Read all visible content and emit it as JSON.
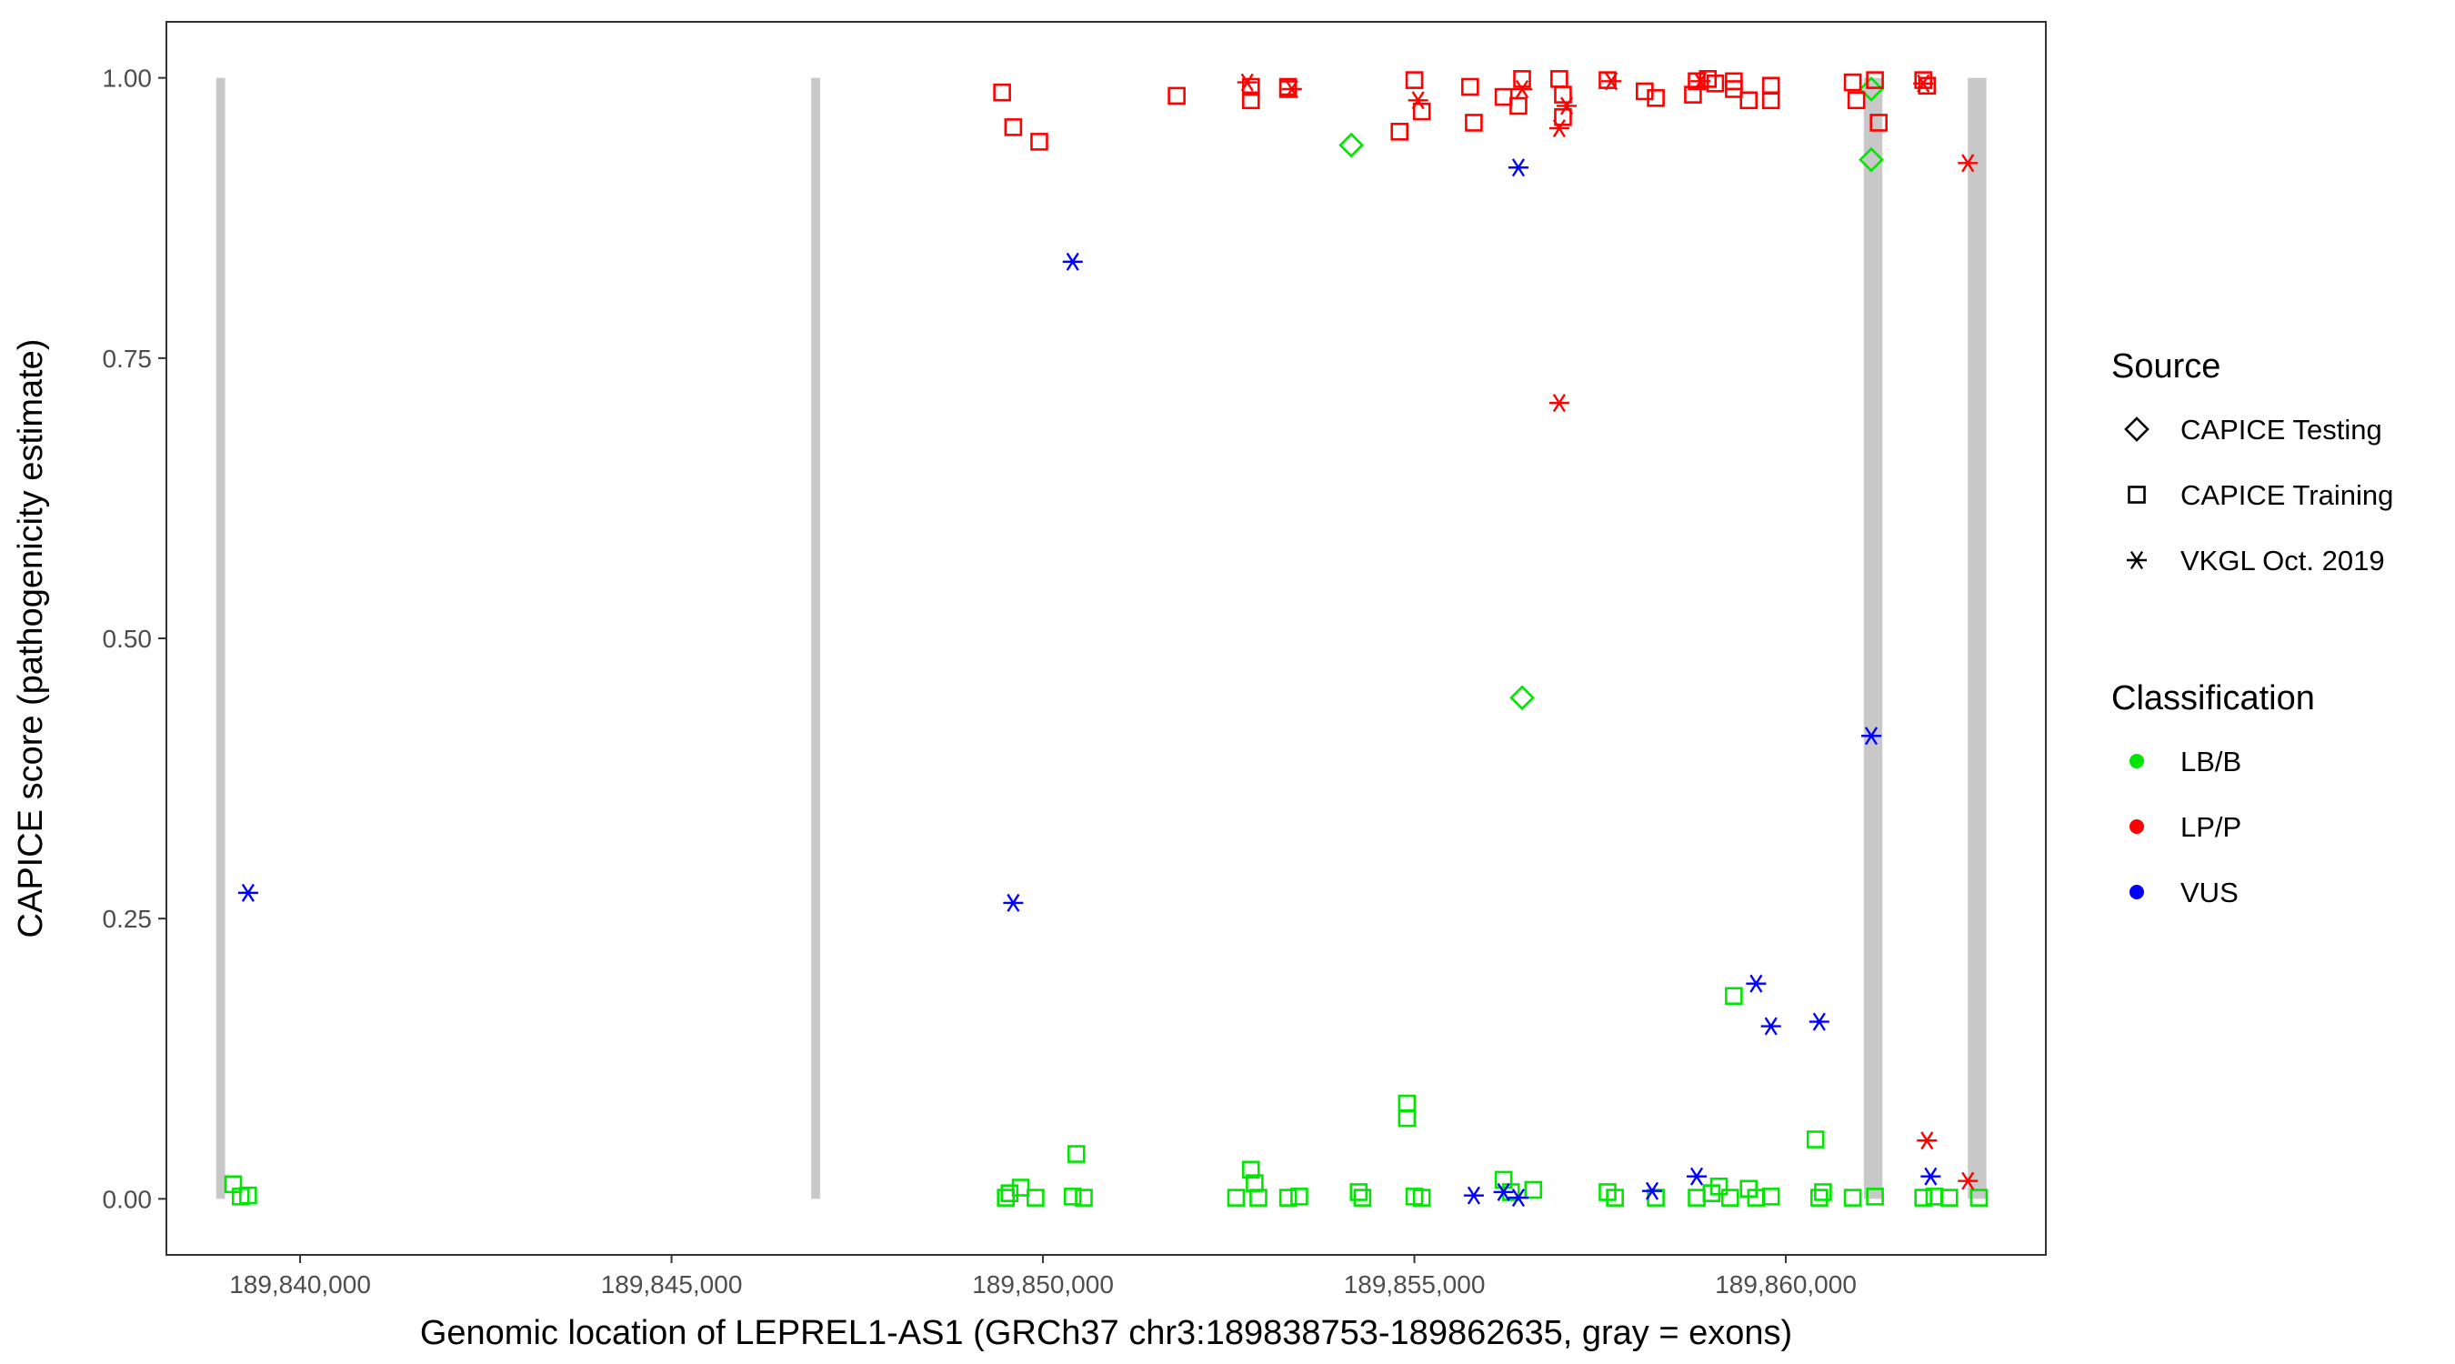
{
  "chart_data": {
    "type": "scatter",
    "xlabel": "Genomic location of LEPREL1-AS1 (GRCh37 chr3:189838753-189862635, gray = exons)",
    "ylabel": "CAPICE score (pathogenicity estimate)",
    "xlim": [
      189838200,
      189863500
    ],
    "ylim": [
      -0.05,
      1.05
    ],
    "x_ticks": [
      189840000,
      189845000,
      189850000,
      189855000,
      189860000
    ],
    "x_tick_labels": [
      "189,840,000",
      "189,845,000",
      "189,850,000",
      "189,855,000",
      "189,860,000"
    ],
    "y_ticks": [
      0,
      0.25,
      0.5,
      0.75,
      1.0
    ],
    "y_tick_labels": [
      "0.00",
      "0.25",
      "0.50",
      "0.75",
      "1.00"
    ],
    "grid": false,
    "legend_position": "right",
    "exons": [
      [
        189838870,
        189838990
      ],
      [
        189846880,
        189847000
      ],
      [
        189861050,
        189861300
      ],
      [
        189862450,
        189862700
      ]
    ],
    "exon_color": "#c8c8c8",
    "shape_legend": {
      "title": "Source",
      "items": [
        {
          "label": "CAPICE Testing",
          "shape": "diamond"
        },
        {
          "label": "CAPICE Training",
          "shape": "square"
        },
        {
          "label": "VKGL Oct. 2019",
          "shape": "asterisk"
        }
      ]
    },
    "color_legend": {
      "title": "Classification",
      "items": [
        {
          "label": "LB/B",
          "color": "#00e600"
        },
        {
          "label": "LP/P",
          "color": "#ff0000"
        },
        {
          "label": "VUS",
          "color": "#0000ff"
        }
      ]
    },
    "series": [
      {
        "source": "CAPICE Testing",
        "classification": "LB/B",
        "points": [
          [
            189854150,
            0.94
          ],
          [
            189856450,
            0.447
          ],
          [
            189861150,
            0.927
          ],
          [
            189861150,
            0.99
          ]
        ]
      },
      {
        "source": "CAPICE Training",
        "classification": "LP/P",
        "points": [
          [
            189849450,
            0.987
          ],
          [
            189849600,
            0.956
          ],
          [
            189849950,
            0.943
          ],
          [
            189851800,
            0.984
          ],
          [
            189852800,
            0.992
          ],
          [
            189852800,
            0.98
          ],
          [
            189853300,
            0.992
          ],
          [
            189853300,
            0.99
          ],
          [
            189854800,
            0.952
          ],
          [
            189855000,
            0.998
          ],
          [
            189855100,
            0.97
          ],
          [
            189855750,
            0.992
          ],
          [
            189855800,
            0.96
          ],
          [
            189856200,
            0.983
          ],
          [
            189856400,
            0.975
          ],
          [
            189856450,
            0.999
          ],
          [
            189856950,
            0.999
          ],
          [
            189857000,
            0.965
          ],
          [
            189857000,
            0.985
          ],
          [
            189857600,
            0.998
          ],
          [
            189858100,
            0.988
          ],
          [
            189858250,
            0.982
          ],
          [
            189858750,
            0.985
          ],
          [
            189858800,
            0.997
          ],
          [
            189858950,
            0.999
          ],
          [
            189859050,
            0.995
          ],
          [
            189859300,
            0.99
          ],
          [
            189859300,
            0.997
          ],
          [
            189859500,
            0.98
          ],
          [
            189859800,
            0.993
          ],
          [
            189859800,
            0.98
          ],
          [
            189860900,
            0.996
          ],
          [
            189860950,
            0.98
          ],
          [
            189861200,
            0.998
          ],
          [
            189861250,
            0.96
          ],
          [
            189861850,
            0.998
          ],
          [
            189861900,
            0.993
          ]
        ]
      },
      {
        "source": "CAPICE Training",
        "classification": "LB/B",
        "points": [
          [
            189839100,
            0.013
          ],
          [
            189839200,
            0.002
          ],
          [
            189839300,
            0.003
          ],
          [
            189849500,
            0.001
          ],
          [
            189849550,
            0.005
          ],
          [
            189849700,
            0.01
          ],
          [
            189849900,
            0.001
          ],
          [
            189850450,
            0.04
          ],
          [
            189850400,
            0.002
          ],
          [
            189850550,
            0.001
          ],
          [
            189852600,
            0.001
          ],
          [
            189852800,
            0.026
          ],
          [
            189852850,
            0.014
          ],
          [
            189852900,
            0.001
          ],
          [
            189853300,
            0.001
          ],
          [
            189853450,
            0.002
          ],
          [
            189854250,
            0.006
          ],
          [
            189854300,
            0.001
          ],
          [
            189854900,
            0.085
          ],
          [
            189854900,
            0.072
          ],
          [
            189855000,
            0.002
          ],
          [
            189855100,
            0.001
          ],
          [
            189856200,
            0.017
          ],
          [
            189856300,
            0.006
          ],
          [
            189856600,
            0.008
          ],
          [
            189857600,
            0.006
          ],
          [
            189857700,
            0.001
          ],
          [
            189858250,
            0.001
          ],
          [
            189858800,
            0.001
          ],
          [
            189859000,
            0.005
          ],
          [
            189859100,
            0.011
          ],
          [
            189859250,
            0.001
          ],
          [
            189859300,
            0.181
          ],
          [
            189859500,
            0.009
          ],
          [
            189859600,
            0.001
          ],
          [
            189859800,
            0.002
          ],
          [
            189860400,
            0.053
          ],
          [
            189860500,
            0.006
          ],
          [
            189860450,
            0.001
          ],
          [
            189860900,
            0.001
          ],
          [
            189861200,
            0.002
          ],
          [
            189861850,
            0.001
          ],
          [
            189862000,
            0.002
          ],
          [
            189862200,
            0.001
          ],
          [
            189862600,
            0.001
          ]
        ]
      },
      {
        "source": "VKGL Oct. 2019",
        "classification": "LP/P",
        "points": [
          [
            189852750,
            0.996
          ],
          [
            189853350,
            0.99
          ],
          [
            189855050,
            0.98
          ],
          [
            189856450,
            0.99
          ],
          [
            189856950,
            0.71
          ],
          [
            189856950,
            0.955
          ],
          [
            189857050,
            0.975
          ],
          [
            189857650,
            0.997
          ],
          [
            189858850,
            0.997
          ],
          [
            189861850,
            0.995
          ],
          [
            189861900,
            0.052
          ],
          [
            189862450,
            0.924
          ],
          [
            189862450,
            0.016
          ]
        ]
      },
      {
        "source": "VKGL Oct. 2019",
        "classification": "VUS",
        "points": [
          [
            189839300,
            0.273
          ],
          [
            189849600,
            0.264
          ],
          [
            189850400,
            0.836
          ],
          [
            189855800,
            0.003
          ],
          [
            189856200,
            0.006
          ],
          [
            189856400,
            0.001
          ],
          [
            189856400,
            0.92
          ],
          [
            189858200,
            0.007
          ],
          [
            189858800,
            0.02
          ],
          [
            189859600,
            0.192
          ],
          [
            189859800,
            0.154
          ],
          [
            189860450,
            0.158
          ],
          [
            189861150,
            0.413
          ],
          [
            189861950,
            0.02
          ]
        ]
      }
    ]
  }
}
